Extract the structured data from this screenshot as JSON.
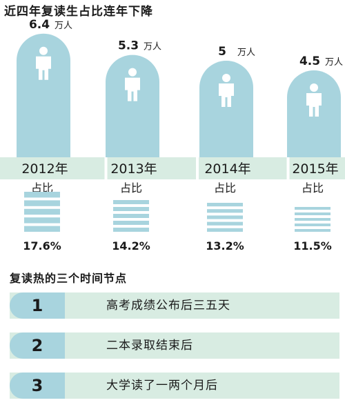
{
  "title": "近四年复读生占比连年下降",
  "chart_data": {
    "type": "bar",
    "categories": [
      "2012年",
      "2013年",
      "2014年",
      "2015年"
    ],
    "series": [
      {
        "values": [
          6.4,
          5.3,
          5,
          4.5
        ],
        "value_labels": [
          "6.4",
          "5.3",
          "5",
          "4.5"
        ],
        "unit": "万人"
      },
      {
        "values": [
          17.6,
          14.2,
          13.2,
          11.5
        ],
        "value_labels": [
          "17.6%",
          "14.2%",
          "13.2%",
          "11.5%"
        ]
      }
    ],
    "ratio_label": "占比",
    "colors": {
      "bar": "#a8d4de",
      "band": "#d8ece2",
      "person": "#ffffff"
    }
  },
  "section_title": "复读热的三个时间节点",
  "timepoints": [
    {
      "num": "1",
      "text": "高考成绩公布后三五天"
    },
    {
      "num": "2",
      "text": "二本录取结束后"
    },
    {
      "num": "3",
      "text": "大学读了一两个月后"
    }
  ]
}
